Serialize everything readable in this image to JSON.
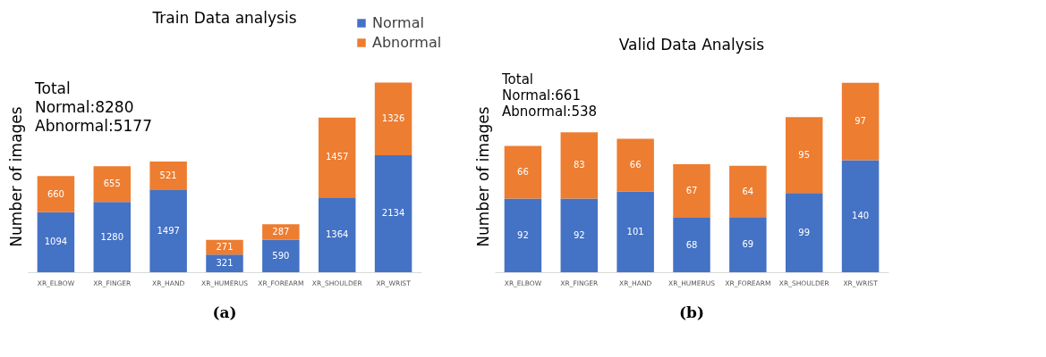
{
  "chart_data": [
    {
      "type": "bar",
      "title": "Train Data analysis",
      "ylabel": "Number of images",
      "categories": [
        "XR_ELBOW",
        "XR_FINGER",
        "XR_HAND",
        "XR_HUMERUS",
        "XR_FOREARM",
        "XR_SHOULDER",
        "XR_WRIST"
      ],
      "stacked": true,
      "data_labels": true,
      "legend": "top right",
      "tick_labels": "x",
      "series": [
        {
          "name": "Normal",
          "color": "#4472c4",
          "values": [
            1094,
            1280,
            1497,
            321,
            590,
            1364,
            2134
          ]
        },
        {
          "name": "Abnormal",
          "color": "#ed7d31",
          "values": [
            660,
            655,
            521,
            271,
            287,
            1457,
            1326
          ]
        }
      ],
      "annotations": [
        "Total",
        "Normal:8280",
        "Abnormal:5177",
        "(a)"
      ]
    },
    {
      "type": "bar",
      "title": "Valid Data Analysis",
      "ylabel": "Number of images",
      "categories": [
        "XR_ELBOW",
        "XR_FINGER",
        "XR_HAND",
        "XR_HUMERUS",
        "XR_FOREARM",
        "XR_SHOULDER",
        "XR_WRIST"
      ],
      "stacked": true,
      "data_labels": true,
      "legend": "top right",
      "tick_labels": "x",
      "series": [
        {
          "name": "Normal",
          "color": "#4472c4",
          "values": [
            92,
            92,
            101,
            68,
            69,
            99,
            140
          ]
        },
        {
          "name": "Abnormal",
          "color": "#ed7d31",
          "values": [
            66,
            83,
            66,
            67,
            64,
            95,
            97
          ]
        }
      ],
      "annotations": [
        "Total",
        "Normal:661",
        "Abnormal:538",
        "(b)"
      ]
    }
  ]
}
